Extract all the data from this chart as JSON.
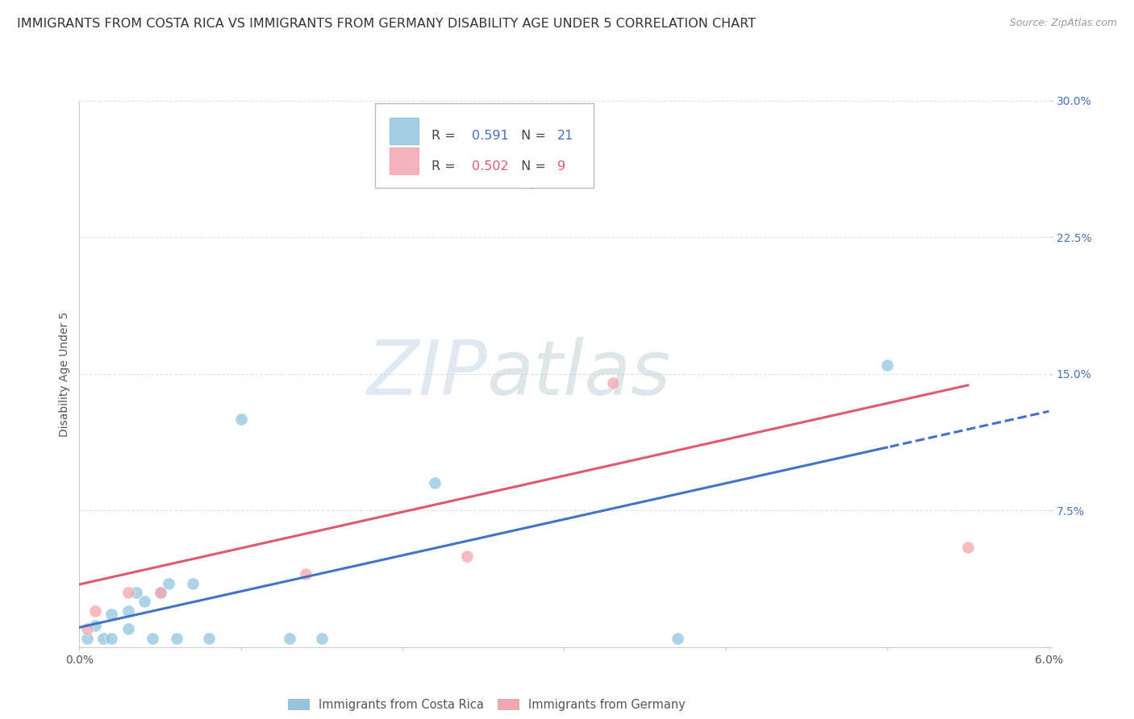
{
  "title": "IMMIGRANTS FROM COSTA RICA VS IMMIGRANTS FROM GERMANY DISABILITY AGE UNDER 5 CORRELATION CHART",
  "source": "Source: ZipAtlas.com",
  "ylabel": "Disability Age Under 5",
  "legend_label1": "Immigrants from Costa Rica",
  "legend_label2": "Immigrants from Germany",
  "R1": 0.591,
  "N1": 21,
  "R2": 0.502,
  "N2": 9,
  "color1": "#92c5de",
  "color2": "#f4a6b0",
  "line_color1": "#4472c4",
  "line_color2": "#e05a6e",
  "xlim": [
    0.0,
    0.06
  ],
  "ylim": [
    0.0,
    0.3
  ],
  "xticks": [
    0.0,
    0.01,
    0.02,
    0.03,
    0.04,
    0.05,
    0.06
  ],
  "xtick_labels": [
    "0.0%",
    "",
    "",
    "",
    "",
    "",
    "6.0%"
  ],
  "yticks": [
    0.0,
    0.075,
    0.15,
    0.225,
    0.3
  ],
  "ytick_labels": [
    "",
    "7.5%",
    "15.0%",
    "22.5%",
    "30.0%"
  ],
  "costa_rica_x": [
    0.0005,
    0.001,
    0.0015,
    0.002,
    0.002,
    0.003,
    0.003,
    0.0035,
    0.004,
    0.0045,
    0.005,
    0.0055,
    0.006,
    0.007,
    0.008,
    0.01,
    0.013,
    0.015,
    0.022,
    0.037,
    0.05
  ],
  "costa_rica_y": [
    0.005,
    0.012,
    0.005,
    0.018,
    0.005,
    0.02,
    0.01,
    0.03,
    0.025,
    0.005,
    0.03,
    0.035,
    0.005,
    0.035,
    0.005,
    0.125,
    0.005,
    0.005,
    0.09,
    0.005,
    0.155
  ],
  "germany_x": [
    0.0005,
    0.001,
    0.003,
    0.005,
    0.014,
    0.024,
    0.028,
    0.033,
    0.055
  ],
  "germany_y": [
    0.01,
    0.02,
    0.03,
    0.03,
    0.04,
    0.05,
    0.255,
    0.145,
    0.055
  ],
  "background_color": "#ffffff",
  "grid_color": "#dddddd",
  "watermark_zip": "ZIP",
  "watermark_atlas": "atlas",
  "title_fontsize": 11.5,
  "axis_label_fontsize": 10,
  "tick_fontsize": 10
}
